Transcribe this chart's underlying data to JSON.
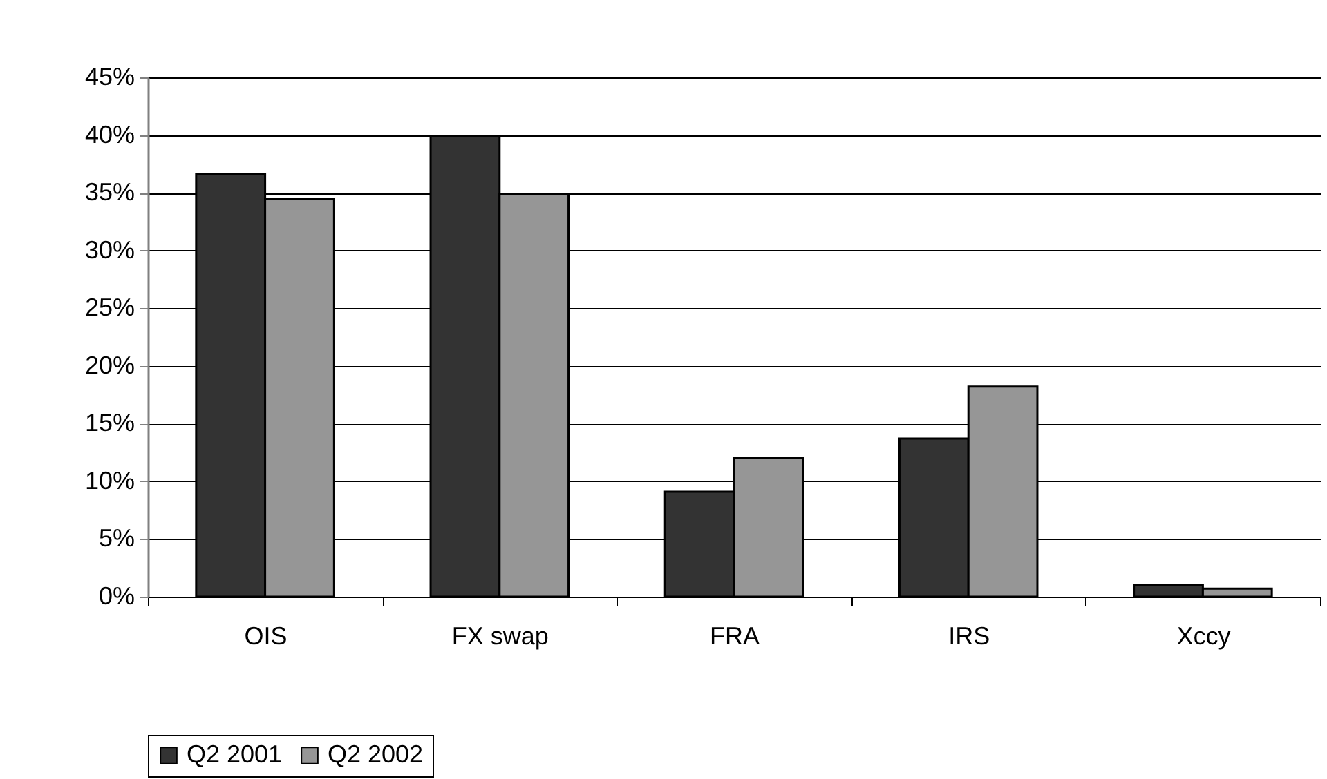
{
  "chart_data": {
    "type": "bar",
    "categories": [
      "OIS",
      "FX swap",
      "FRA",
      "IRS",
      "Xccy"
    ],
    "series": [
      {
        "name": "Q2 2001",
        "color": "#333333",
        "values": [
          36.6,
          39.9,
          9.1,
          13.7,
          1.0
        ]
      },
      {
        "name": "Q2 2002",
        "color": "#969696",
        "values": [
          34.5,
          34.9,
          12.0,
          18.2,
          0.7
        ]
      }
    ],
    "ylim": [
      0,
      45
    ],
    "yticks": [
      {
        "value": 0,
        "label": "0%"
      },
      {
        "value": 5,
        "label": "5%"
      },
      {
        "value": 10,
        "label": "10%"
      },
      {
        "value": 15,
        "label": "15%"
      },
      {
        "value": 20,
        "label": "20%"
      },
      {
        "value": 25,
        "label": "25%"
      },
      {
        "value": 30,
        "label": "30%"
      },
      {
        "value": 35,
        "label": "35%"
      },
      {
        "value": 40,
        "label": "40%"
      },
      {
        "value": 45,
        "label": "45%"
      }
    ],
    "grid": "y",
    "legend": "bottom"
  }
}
